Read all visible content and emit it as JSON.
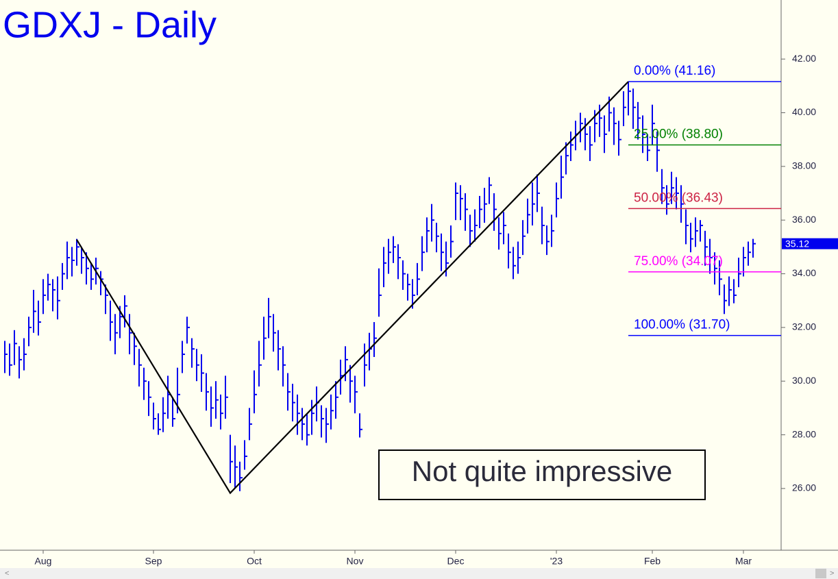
{
  "chart_data": {
    "type": "ohlc",
    "title": "GDXJ - Daily",
    "annotation": "Not quite impressive",
    "color": "#0000ee",
    "categories": [
      null,
      null,
      null,
      null,
      null,
      null,
      null,
      null,
      "Aug",
      null,
      null,
      null,
      null,
      null,
      null,
      null,
      null,
      null,
      null,
      null,
      null,
      null,
      null,
      null,
      null,
      null,
      null,
      null,
      null,
      null,
      null,
      "Sep",
      null,
      null,
      null,
      null,
      null,
      null,
      null,
      null,
      null,
      null,
      null,
      null,
      null,
      null,
      null,
      null,
      null,
      null,
      null,
      null,
      "Oct",
      null,
      null,
      null,
      null,
      null,
      null,
      null,
      null,
      null,
      null,
      null,
      null,
      null,
      null,
      null,
      null,
      null,
      null,
      null,
      null,
      "Nov",
      null,
      null,
      null,
      null,
      null,
      null,
      null,
      null,
      null,
      null,
      null,
      null,
      null,
      null,
      null,
      null,
      null,
      null,
      null,
      null,
      "Dec",
      null,
      null,
      null,
      null,
      null,
      null,
      null,
      null,
      null,
      null,
      null,
      null,
      null,
      null,
      null,
      null,
      null,
      null,
      null,
      null,
      "'23",
      null,
      null,
      null,
      null,
      null,
      null,
      null,
      null,
      null,
      null,
      null,
      null,
      null,
      null,
      null,
      null,
      null,
      null,
      null,
      "Feb",
      null,
      null,
      null,
      null,
      null,
      null,
      null,
      null,
      null,
      null,
      null,
      null,
      null,
      null,
      null,
      null,
      null,
      null,
      "Mar",
      null,
      null
    ],
    "high": [
      31.5,
      31.4,
      31.9,
      31.3,
      31.6,
      32.4,
      33.4,
      33.0,
      33.8,
      34.0,
      33.8,
      33.9,
      34.4,
      35.2,
      35.0,
      35.3,
      35.0,
      34.8,
      34.4,
      34.6,
      34.1,
      33.6,
      33.0,
      32.5,
      32.8,
      33.2,
      32.5,
      31.8,
      31.2,
      30.5,
      30.0,
      29.2,
      28.8,
      29.4,
      30.2,
      29.4,
      30.5,
      31.5,
      32.4,
      31.6,
      31.2,
      31.0,
      30.3,
      29.8,
      30.0,
      29.5,
      30.2,
      28.0,
      27.6,
      27.0,
      27.8,
      29.0,
      30.4,
      31.5,
      32.4,
      33.1,
      32.5,
      31.9,
      31.3,
      30.3,
      29.9,
      29.5,
      29.0,
      28.8,
      29.3,
      29.8,
      29.1,
      29.0,
      29.5,
      30.0,
      30.8,
      31.3,
      30.6,
      30.2,
      28.8,
      31.4,
      31.8,
      32.2,
      34.2,
      35.0,
      35.3,
      35.4,
      35.1,
      34.5,
      34.0,
      33.8,
      34.4,
      35.4,
      36.1,
      36.6,
      35.9,
      35.5,
      35.2,
      35.8,
      37.4,
      37.3,
      37.0,
      36.2,
      36.4,
      36.9,
      37.2,
      37.6,
      37.0,
      36.1,
      36.3,
      35.5,
      35.0,
      35.2,
      36.0,
      36.8,
      37.4,
      37.7,
      36.5,
      35.8,
      36.2,
      37.4,
      38.4,
      38.9,
      39.3,
      39.7,
      40.0,
      39.8,
      39.5,
      40.1,
      40.3,
      39.9,
      40.6,
      40.2,
      39.7,
      40.8,
      41.16,
      40.9,
      40.4,
      39.9,
      39.2,
      40.3,
      39.3,
      37.9,
      37.3,
      37.8,
      37.6,
      37.3,
      36.4,
      35.9,
      36.1,
      36.0,
      35.6,
      35.3,
      34.8,
      34.5,
      33.6,
      33.9,
      33.8,
      34.6,
      35.0,
      35.2,
      35.3
    ],
    "low": [
      30.3,
      30.2,
      30.6,
      30.1,
      30.4,
      31.3,
      31.8,
      31.7,
      32.5,
      33.0,
      32.6,
      32.3,
      33.4,
      33.8,
      33.9,
      34.3,
      34.0,
      33.6,
      33.4,
      33.6,
      33.2,
      32.5,
      31.5,
      31.0,
      31.6,
      32.0,
      31.0,
      30.6,
      29.8,
      29.3,
      28.7,
      28.2,
      28.0,
      28.1,
      28.6,
      28.3,
      28.8,
      30.3,
      31.4,
      30.5,
      30.0,
      29.6,
      28.9,
      28.3,
      28.6,
      28.2,
      28.6,
      26.2,
      26.0,
      25.9,
      26.7,
      27.8,
      28.8,
      29.8,
      30.8,
      31.6,
      31.1,
      30.4,
      29.8,
      28.9,
      28.5,
      28.0,
      27.8,
      27.6,
      28.0,
      28.5,
      27.9,
      27.7,
      28.2,
      28.6,
      29.5,
      30.0,
      29.2,
      28.8,
      27.9,
      29.8,
      30.4,
      30.9,
      32.4,
      33.5,
      34.0,
      34.4,
      33.8,
      33.4,
      33.0,
      32.7,
      33.2,
      34.1,
      34.8,
      35.2,
      34.8,
      34.1,
      33.9,
      34.6,
      36.0,
      36.0,
      35.6,
      35.0,
      35.2,
      35.7,
      35.9,
      36.6,
      35.6,
      34.9,
      35.1,
      34.2,
      33.8,
      34.0,
      34.7,
      35.5,
      35.8,
      36.3,
      35.1,
      34.7,
      35.0,
      36.1,
      36.8,
      37.7,
      38.2,
      38.6,
      38.9,
      38.6,
      38.2,
      38.9,
      39.1,
      38.5,
      39.3,
      38.8,
      38.4,
      39.5,
      39.9,
      39.4,
      39.0,
      38.5,
      38.2,
      38.8,
      37.8,
      36.6,
      36.2,
      36.6,
      36.4,
      35.9,
      35.1,
      34.8,
      35.0,
      35.2,
      34.3,
      34.0,
      33.6,
      33.2,
      32.5,
      32.8,
      32.9,
      33.5,
      33.9,
      34.3,
      34.6
    ],
    "close": [
      31.0,
      30.6,
      31.4,
      30.8,
      31.0,
      32.0,
      32.6,
      32.2,
      33.2,
      33.6,
      33.4,
      33.0,
      34.0,
      34.6,
      34.5,
      35.0,
      34.6,
      34.2,
      33.8,
      34.2,
      33.8,
      33.2,
      32.2,
      31.8,
      32.4,
      32.8,
      31.8,
      31.3,
      30.6,
      30.0,
      29.4,
      28.6,
      28.2,
      28.8,
      29.5,
      28.6,
      29.5,
      31.0,
      32.0,
      31.2,
      30.6,
      30.3,
      29.6,
      29.0,
      29.3,
      28.8,
      29.4,
      27.0,
      26.8,
      26.4,
      27.2,
      28.4,
      29.5,
      30.6,
      31.6,
      32.4,
      31.8,
      31.2,
      30.6,
      29.6,
      29.2,
      28.8,
      28.4,
      28.0,
      28.8,
      29.2,
      28.6,
      28.4,
      28.9,
      29.4,
      30.2,
      30.8,
      30.0,
      29.6,
      28.2,
      30.6,
      31.2,
      31.6,
      33.2,
      34.4,
      34.8,
      35.0,
      34.6,
      34.0,
      33.6,
      33.2,
      33.8,
      34.8,
      35.6,
      36.0,
      35.4,
      34.8,
      34.4,
      35.2,
      37.0,
      36.8,
      36.4,
      35.6,
      35.8,
      36.4,
      36.6,
      37.3,
      36.4,
      35.5,
      35.8,
      34.8,
      34.3,
      34.6,
      35.4,
      36.2,
      36.6,
      37.0,
      35.8,
      35.2,
      35.6,
      36.8,
      37.6,
      38.4,
      38.8,
      39.2,
      39.6,
      39.2,
      38.8,
      39.6,
      39.8,
      39.2,
      40.0,
      39.6,
      39.0,
      40.2,
      40.8,
      40.2,
      39.8,
      39.2,
      38.6,
      39.6,
      38.6,
      37.2,
      36.6,
      37.2,
      37.0,
      36.6,
      35.8,
      35.3,
      35.6,
      35.8,
      35.0,
      34.6,
      34.2,
      33.8,
      33.0,
      33.4,
      33.2,
      34.0,
      34.6,
      34.8,
      35.12
    ],
    "zigzag": {
      "color": "#000000",
      "x": [
        15,
        47,
        130
      ],
      "values": [
        35.27,
        25.83,
        41.16
      ]
    },
    "fib_levels": [
      {
        "label": "0.00% (41.16)",
        "value": 41.16,
        "color": "#0000ff"
      },
      {
        "label": "25.00% (38.80)",
        "value": 38.8,
        "color": "#008000"
      },
      {
        "label": "50.00% (36.43)",
        "value": 36.43,
        "color": "#cc2244"
      },
      {
        "label": "75.00% (34.07)",
        "value": 34.07,
        "color": "#ff00ff"
      },
      {
        "label": "100.00% (31.70)",
        "value": 31.7,
        "color": "#0000ff"
      }
    ],
    "ylim": [
      23.7,
      44.2
    ],
    "yticks": [
      {
        "value": 26,
        "label": "26.00"
      },
      {
        "value": 28,
        "label": "28.00"
      },
      {
        "value": 30,
        "label": "30.00"
      },
      {
        "value": 32,
        "label": "32.00"
      },
      {
        "value": 34,
        "label": "34.00"
      },
      {
        "value": 36,
        "label": "36.00"
      },
      {
        "value": 38,
        "label": "38.00"
      },
      {
        "value": 40,
        "label": "40.00"
      },
      {
        "value": 42,
        "label": "42.00"
      }
    ]
  }
}
